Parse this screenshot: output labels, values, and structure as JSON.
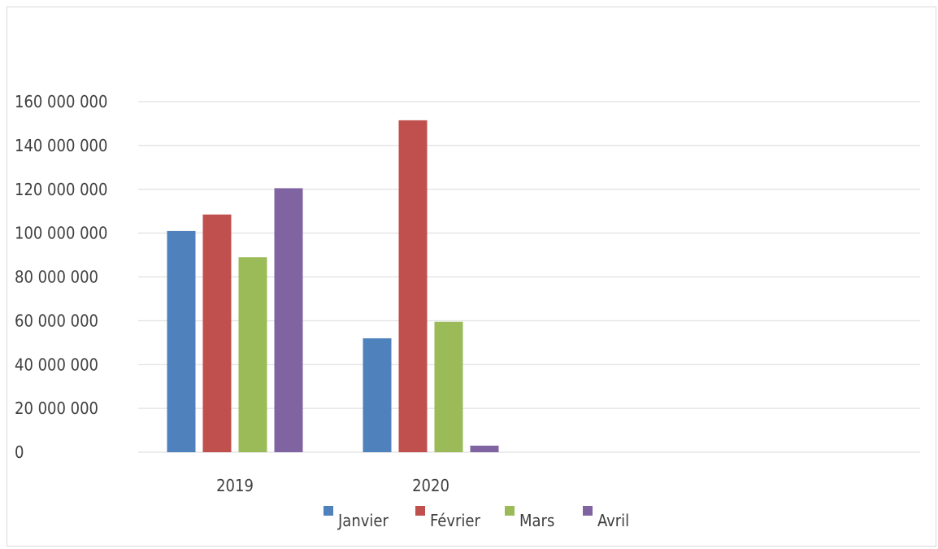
{
  "chart_data": {
    "type": "bar",
    "title": "",
    "xlabel": "",
    "ylabel": "",
    "categories": [
      "2019",
      "2020"
    ],
    "series": [
      {
        "name": "Janvier",
        "color": "#4f81bd",
        "values": [
          101000000,
          52000000
        ]
      },
      {
        "name": "Février",
        "color": "#c0504d",
        "values": [
          108500000,
          151500000
        ]
      },
      {
        "name": "Mars",
        "color": "#9bbb59",
        "values": [
          89000000,
          59500000
        ]
      },
      {
        "name": "Avril",
        "color": "#8064a2",
        "values": [
          120500000,
          3000000
        ]
      }
    ],
    "ylim": [
      0,
      160000000
    ],
    "yticks": [
      0,
      20000000,
      40000000,
      60000000,
      80000000,
      100000000,
      120000000,
      140000000,
      160000000
    ],
    "ytick_labels": [
      "0",
      "20 000 000",
      "40 000 000",
      "60 000 000",
      "80 000 000",
      "100 000 000",
      "120 000 000",
      "140 000 000",
      "160 000 000"
    ],
    "grid": true,
    "gridline_color": "#d9d9d9",
    "legend_position": "bottom"
  }
}
